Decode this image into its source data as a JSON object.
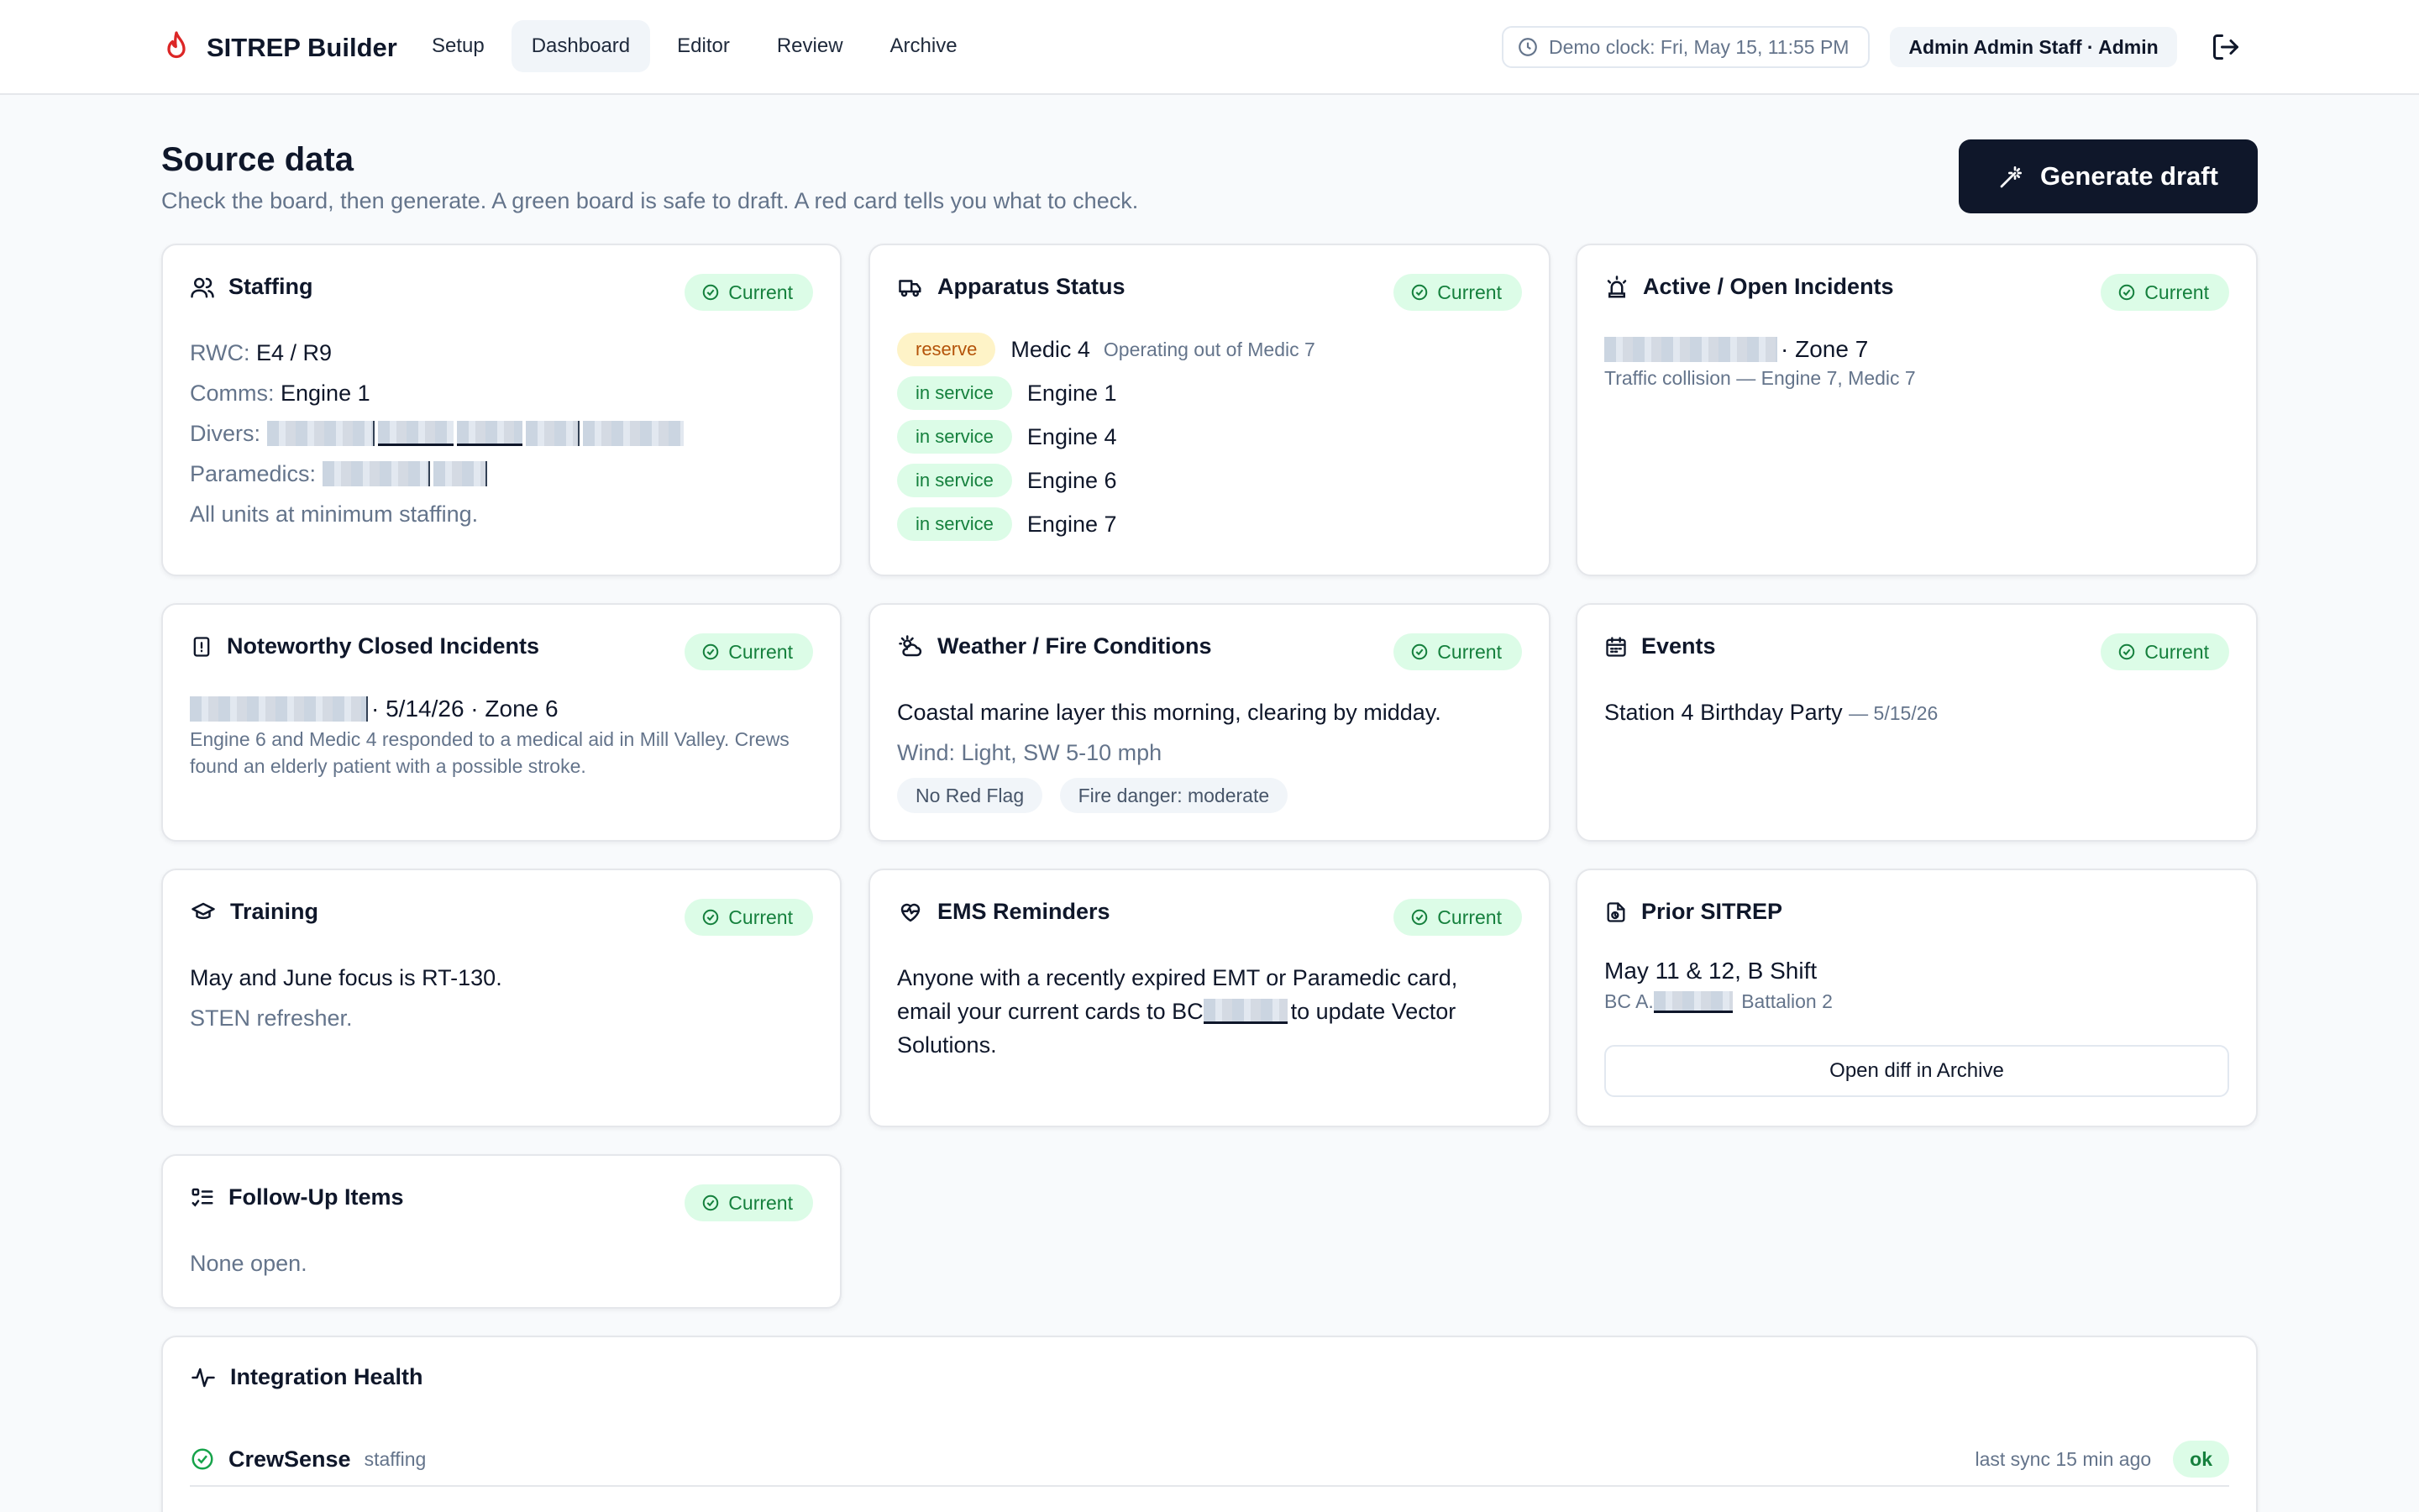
{
  "app": {
    "title": "SITREP Builder"
  },
  "nav": [
    {
      "label": "Setup",
      "active": false
    },
    {
      "label": "Dashboard",
      "active": true
    },
    {
      "label": "Editor",
      "active": false
    },
    {
      "label": "Review",
      "active": false
    },
    {
      "label": "Archive",
      "active": false
    }
  ],
  "header": {
    "clock": "Demo clock: Fri, May 15, 11:55 PM",
    "user": "Admin Admin Staff · Admin"
  },
  "page": {
    "title": "Source data",
    "subtitle": "Check the board, then generate. A green board is safe to draft. A red card tells you what to check.",
    "generate_label": "Generate draft"
  },
  "status_label": "Current",
  "staffing": {
    "title": "Staffing",
    "rwc_label": "RWC:",
    "rwc_value": "E4 / R9",
    "comms_label": "Comms:",
    "comms_value": "Engine 1",
    "divers_label": "Divers:",
    "paramedics_label": "Paramedics:",
    "note": "All units at minimum staffing."
  },
  "apparatus": {
    "title": "Apparatus Status",
    "units": [
      {
        "status": "reserve",
        "name": "Medic 4",
        "note": "Operating out of Medic 7"
      },
      {
        "status": "in service",
        "name": "Engine 1",
        "note": ""
      },
      {
        "status": "in service",
        "name": "Engine 4",
        "note": ""
      },
      {
        "status": "in service",
        "name": "Engine 6",
        "note": ""
      },
      {
        "status": "in service",
        "name": "Engine 7",
        "note": ""
      }
    ]
  },
  "active_incidents": {
    "title": "Active / Open Incidents",
    "zone": "· Zone 7",
    "desc": "Traffic collision — Engine 7, Medic 7"
  },
  "closed_incidents": {
    "title": "Noteworthy Closed Incidents",
    "meta": "· 5/14/26 · Zone 6",
    "desc": "Engine 6 and Medic 4 responded to a medical aid in Mill Valley. Crews found an elderly patient with a possible stroke."
  },
  "weather": {
    "title": "Weather / Fire Conditions",
    "summary": "Coastal marine layer this morning, clearing by midday.",
    "wind": "Wind: Light, SW 5-10 mph",
    "tags": [
      "No Red Flag",
      "Fire danger: moderate"
    ]
  },
  "events": {
    "title": "Events",
    "name": "Station 4 Birthday Party",
    "date": "— 5/15/26"
  },
  "training": {
    "title": "Training",
    "line1": "May and June focus is RT-130.",
    "line2": "STEN refresher."
  },
  "ems": {
    "title": "EMS Reminders",
    "text_a": "Anyone with a recently expired EMT or Paramedic card,",
    "text_b": "email your current cards to BC",
    "text_c": "to update Vector",
    "text_d": "Solutions."
  },
  "prior": {
    "title": "Prior SITREP",
    "shift": "May 11 & 12, B Shift",
    "bc_prefix": "BC A.",
    "bc_suffix": "Battalion 2",
    "button": "Open diff in Archive"
  },
  "followup": {
    "title": "Follow-Up Items",
    "text": "None open."
  },
  "integration": {
    "title": "Integration Health",
    "rows": [
      {
        "name": "CrewSense",
        "category": "staffing",
        "sync": "last sync 15 min ago",
        "status": "ok"
      }
    ]
  },
  "colors": {
    "accent": "#0f172a",
    "current_bg": "#dcfce7",
    "current_fg": "#15803d",
    "brand": "#dc2626"
  }
}
